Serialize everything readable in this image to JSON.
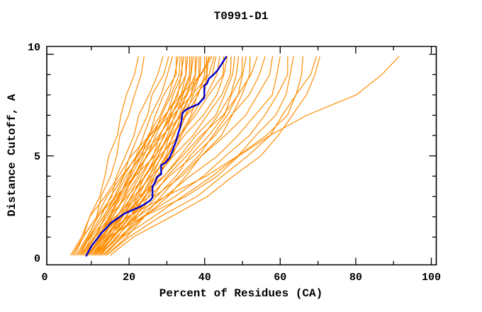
{
  "chart_data": {
    "type": "line",
    "title": "T0991-D1",
    "xlabel": "Percent of Residues (CA)",
    "ylabel": "Distance Cutoff, A",
    "xlim": [
      0,
      100
    ],
    "ylim": [
      0,
      10
    ],
    "grid": false,
    "legend": "none",
    "x_tick_values": [
      0,
      20,
      40,
      60,
      80,
      100
    ],
    "x_tick_labels": [
      "0",
      "20",
      "40",
      "60",
      "80",
      "100"
    ],
    "x_minor_ticks": [
      10,
      30,
      50,
      70,
      90
    ],
    "y_tick_values": [
      0,
      5,
      10
    ],
    "y_tick_labels": [
      "0",
      "5",
      "10"
    ],
    "y_minor_ticks": [
      1,
      2,
      3,
      4,
      6,
      7,
      8,
      9
    ],
    "colors": {
      "model_lines": "#ff8c00",
      "highlight_line": "#0000cd",
      "axis": "#000000",
      "background": "#ffffff"
    },
    "anchor_y": [
      0.1,
      1,
      2,
      3,
      4,
      5,
      6,
      7,
      8,
      9,
      9.9
    ],
    "series": [
      {
        "x": [
          5,
          7.5,
          10,
          12,
          13.5,
          15,
          16.5,
          18,
          19.5,
          21,
          22.5
        ]
      },
      {
        "x": [
          5.5,
          8,
          11,
          13,
          15,
          16.5,
          18,
          19.5,
          21.5,
          23.5,
          24
        ]
      },
      {
        "x": [
          6,
          9,
          12,
          15,
          17,
          19,
          21,
          23,
          25,
          27.5,
          29
        ]
      },
      {
        "x": [
          6.5,
          9,
          12.5,
          15.5,
          18,
          20.5,
          22.5,
          24.5,
          26.5,
          29,
          30.5
        ]
      },
      {
        "x": [
          7,
          10,
          13,
          16,
          19,
          21.5,
          24,
          26,
          28,
          30.5,
          31.5
        ]
      },
      {
        "x": [
          7,
          10.5,
          14,
          17,
          20,
          22.5,
          25,
          27,
          29.5,
          32,
          32.5
        ]
      },
      {
        "x": [
          7.5,
          11,
          14.5,
          17.5,
          20.5,
          23,
          25.5,
          28,
          30.5,
          32.5,
          33
        ]
      },
      {
        "x": [
          8,
          11,
          14,
          17,
          20,
          23,
          26,
          29,
          31,
          33,
          33.5
        ]
      },
      {
        "x": [
          8,
          11.5,
          15,
          18,
          21,
          24,
          26.5,
          29.5,
          32,
          34,
          34
        ]
      },
      {
        "x": [
          8.5,
          12,
          15.5,
          18.5,
          21.5,
          24.5,
          27,
          30,
          32.5,
          34,
          34.5
        ]
      },
      {
        "x": [
          9,
          12.5,
          16,
          19,
          22,
          25,
          28,
          30.5,
          33,
          35,
          35
        ]
      },
      {
        "x": [
          9,
          13,
          16.5,
          20,
          23,
          26,
          28.5,
          31,
          33.5,
          35.5,
          35.5
        ]
      },
      {
        "x": [
          9.5,
          13,
          17,
          20.5,
          23.5,
          26.5,
          29,
          31.5,
          34,
          36,
          36
        ]
      },
      {
        "x": [
          10,
          13.5,
          17.5,
          21,
          24,
          27,
          29.5,
          32,
          34.5,
          36.5,
          36.5
        ]
      },
      {
        "x": [
          10,
          14,
          18,
          21.5,
          24.5,
          27.5,
          30,
          32.5,
          35,
          36.5,
          37
        ]
      },
      {
        "x": [
          10.5,
          14.5,
          18.5,
          22,
          25,
          28,
          30.5,
          33,
          35.5,
          37.5,
          37.5
        ]
      },
      {
        "x": [
          11,
          15,
          19,
          22.5,
          25.5,
          28.5,
          31,
          33.5,
          36,
          38,
          38
        ]
      },
      {
        "x": [
          11,
          15.5,
          19.5,
          23,
          26,
          29,
          31.5,
          34,
          36.5,
          38.5,
          38.5
        ]
      },
      {
        "x": [
          11.5,
          16,
          20,
          23.5,
          26.5,
          29.5,
          32,
          34.5,
          37,
          39,
          39
        ]
      },
      {
        "x": [
          12,
          16,
          20.5,
          24,
          27,
          30,
          32.5,
          35.5,
          38,
          40,
          40
        ]
      },
      {
        "x": [
          12,
          16.5,
          21,
          24.5,
          27.5,
          30.5,
          33.5,
          36,
          38.5,
          40.5,
          40.5
        ]
      },
      {
        "x": [
          12.5,
          17,
          21.5,
          25,
          28,
          31,
          34,
          37,
          39.5,
          41,
          41
        ]
      },
      {
        "x": [
          4.5,
          7,
          10,
          13.5,
          17,
          21,
          25,
          29.5,
          34,
          38.5,
          41.5
        ]
      },
      {
        "x": [
          5,
          8,
          11,
          14.5,
          18,
          22,
          26,
          30.5,
          35,
          39.5,
          42
        ]
      },
      {
        "x": [
          6,
          9,
          12,
          16,
          19.5,
          23.5,
          27.5,
          32,
          36.5,
          41,
          42.5
        ]
      },
      {
        "x": [
          6.5,
          9.5,
          13,
          17,
          21,
          25,
          29,
          33.5,
          38,
          42,
          43
        ]
      },
      {
        "x": [
          7.5,
          10.5,
          14,
          18,
          22,
          26.5,
          31,
          35.5,
          40,
          43.5,
          44
        ]
      },
      {
        "x": [
          8.5,
          11.5,
          15,
          19.5,
          24,
          28.5,
          33,
          37.5,
          41.5,
          44.5,
          45
        ]
      },
      {
        "x": [
          9.5,
          13,
          17,
          21.5,
          26,
          30.5,
          35,
          39.5,
          43,
          45.5,
          46
        ]
      },
      {
        "x": [
          10.5,
          14,
          18.5,
          23,
          27.5,
          32,
          36.5,
          41,
          44.5,
          46.5,
          47
        ]
      },
      {
        "x": [
          11.5,
          15.5,
          20,
          24.5,
          29,
          33.5,
          38,
          42.5,
          45.5,
          47.5,
          48
        ]
      },
      {
        "x": [
          12.5,
          17,
          21.5,
          26,
          30.5,
          35,
          39.5,
          44,
          46.5,
          48.5,
          49
        ]
      },
      {
        "x": [
          13,
          17.5,
          22.5,
          27.5,
          32,
          36.5,
          41,
          45,
          47.5,
          49.5,
          50
        ]
      },
      {
        "x": [
          13.5,
          18.5,
          23.5,
          28.5,
          33.5,
          38,
          42.5,
          46,
          48.5,
          50.5,
          51
        ]
      },
      {
        "x": [
          14,
          19,
          24.5,
          30,
          35,
          39.5,
          44,
          47.5,
          50,
          51.5,
          52
        ]
      },
      {
        "x": [
          8,
          11,
          16,
          23,
          29,
          34,
          39.5,
          44.5,
          49,
          52.5,
          54
        ]
      },
      {
        "x": [
          9,
          12.5,
          18,
          25,
          31,
          37,
          42.5,
          47.5,
          51.5,
          54.5,
          56
        ]
      },
      {
        "x": [
          10,
          14,
          20,
          27,
          33.5,
          39.5,
          45.5,
          50.5,
          54.5,
          57,
          58
        ]
      },
      {
        "x": [
          11,
          15.5,
          22,
          29.5,
          36.5,
          43,
          49,
          53.5,
          57.5,
          59.5,
          60
        ]
      },
      {
        "x": [
          12,
          17,
          24,
          32,
          39.5,
          46,
          51.5,
          56,
          59.5,
          61.5,
          62
        ]
      },
      {
        "x": [
          13,
          18.5,
          26,
          34.5,
          42,
          48.5,
          54,
          58.5,
          61.5,
          63,
          63.5
        ]
      },
      {
        "x": [
          14,
          20,
          28.5,
          37.5,
          45,
          51.5,
          57,
          61,
          64,
          65.5,
          66
        ]
      },
      {
        "x": [
          9,
          13,
          19.5,
          30,
          40,
          49,
          56.5,
          61.5,
          64.5,
          68,
          69.6
        ]
      },
      {
        "x": [
          15,
          21.5,
          31,
          40.5,
          48,
          54.5,
          59.5,
          63.5,
          66.5,
          69.5,
          70.5
        ]
      },
      {
        "x": [
          10,
          14,
          24,
          35,
          43,
          49.5,
          57,
          67,
          80.5,
          86.5,
          91.5
        ]
      }
    ],
    "highlight_series": {
      "points": [
        [
          8.6,
          0.05
        ],
        [
          9.3,
          0.3
        ],
        [
          10.2,
          0.6
        ],
        [
          11.5,
          0.9
        ],
        [
          12.7,
          1.2
        ],
        [
          14.0,
          1.45
        ],
        [
          15.2,
          1.7
        ],
        [
          16.8,
          1.9
        ],
        [
          18.7,
          2.15
        ],
        [
          20.5,
          2.3
        ],
        [
          22.4,
          2.45
        ],
        [
          24.0,
          2.6
        ],
        [
          25.6,
          2.8
        ],
        [
          26.2,
          2.95
        ],
        [
          26.2,
          3.5
        ],
        [
          26.8,
          3.65
        ],
        [
          27.4,
          3.95
        ],
        [
          28.5,
          4.1
        ],
        [
          28.5,
          4.55
        ],
        [
          29.6,
          4.65
        ],
        [
          30.7,
          4.9
        ],
        [
          31.5,
          5.25
        ],
        [
          32.4,
          5.7
        ],
        [
          33.0,
          6.1
        ],
        [
          33.5,
          6.4
        ],
        [
          33.9,
          6.75
        ],
        [
          34.1,
          7.1
        ],
        [
          34.9,
          7.25
        ],
        [
          35.9,
          7.35
        ],
        [
          37.1,
          7.45
        ],
        [
          38.4,
          7.55
        ],
        [
          39.3,
          7.75
        ],
        [
          39.9,
          7.85
        ],
        [
          39.9,
          8.45
        ],
        [
          40.6,
          8.55
        ],
        [
          41.1,
          8.8
        ],
        [
          42.1,
          8.95
        ],
        [
          43.4,
          9.2
        ],
        [
          44.6,
          9.55
        ],
        [
          45.8,
          9.9
        ]
      ]
    }
  }
}
